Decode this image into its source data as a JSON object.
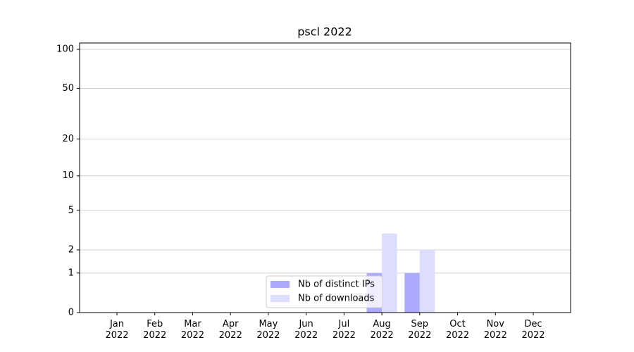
{
  "chart_data": {
    "type": "bar",
    "title": "pscl 2022",
    "categories": [
      "Jan 2022",
      "Feb 2022",
      "Mar 2022",
      "Apr 2022",
      "May 2022",
      "Jun 2022",
      "Jul 2022",
      "Aug 2022",
      "Sep 2022",
      "Oct 2022",
      "Nov 2022",
      "Dec 2022"
    ],
    "series": [
      {
        "name": "Nb of distinct IPs",
        "color": "#aaaaff",
        "values": [
          0,
          0,
          0,
          0,
          0,
          0,
          0,
          1,
          1,
          0,
          0,
          0
        ]
      },
      {
        "name": "Nb of downloads",
        "color": "#ddddff",
        "values": [
          0,
          0,
          0,
          0,
          0,
          0,
          0,
          3,
          2,
          0,
          0,
          0
        ]
      }
    ],
    "yscale": "symlog",
    "ylim": [
      0,
      112
    ],
    "yticks": [
      0,
      1,
      2,
      5,
      10,
      20,
      50,
      100
    ],
    "grid": true,
    "legend": "lower center"
  }
}
